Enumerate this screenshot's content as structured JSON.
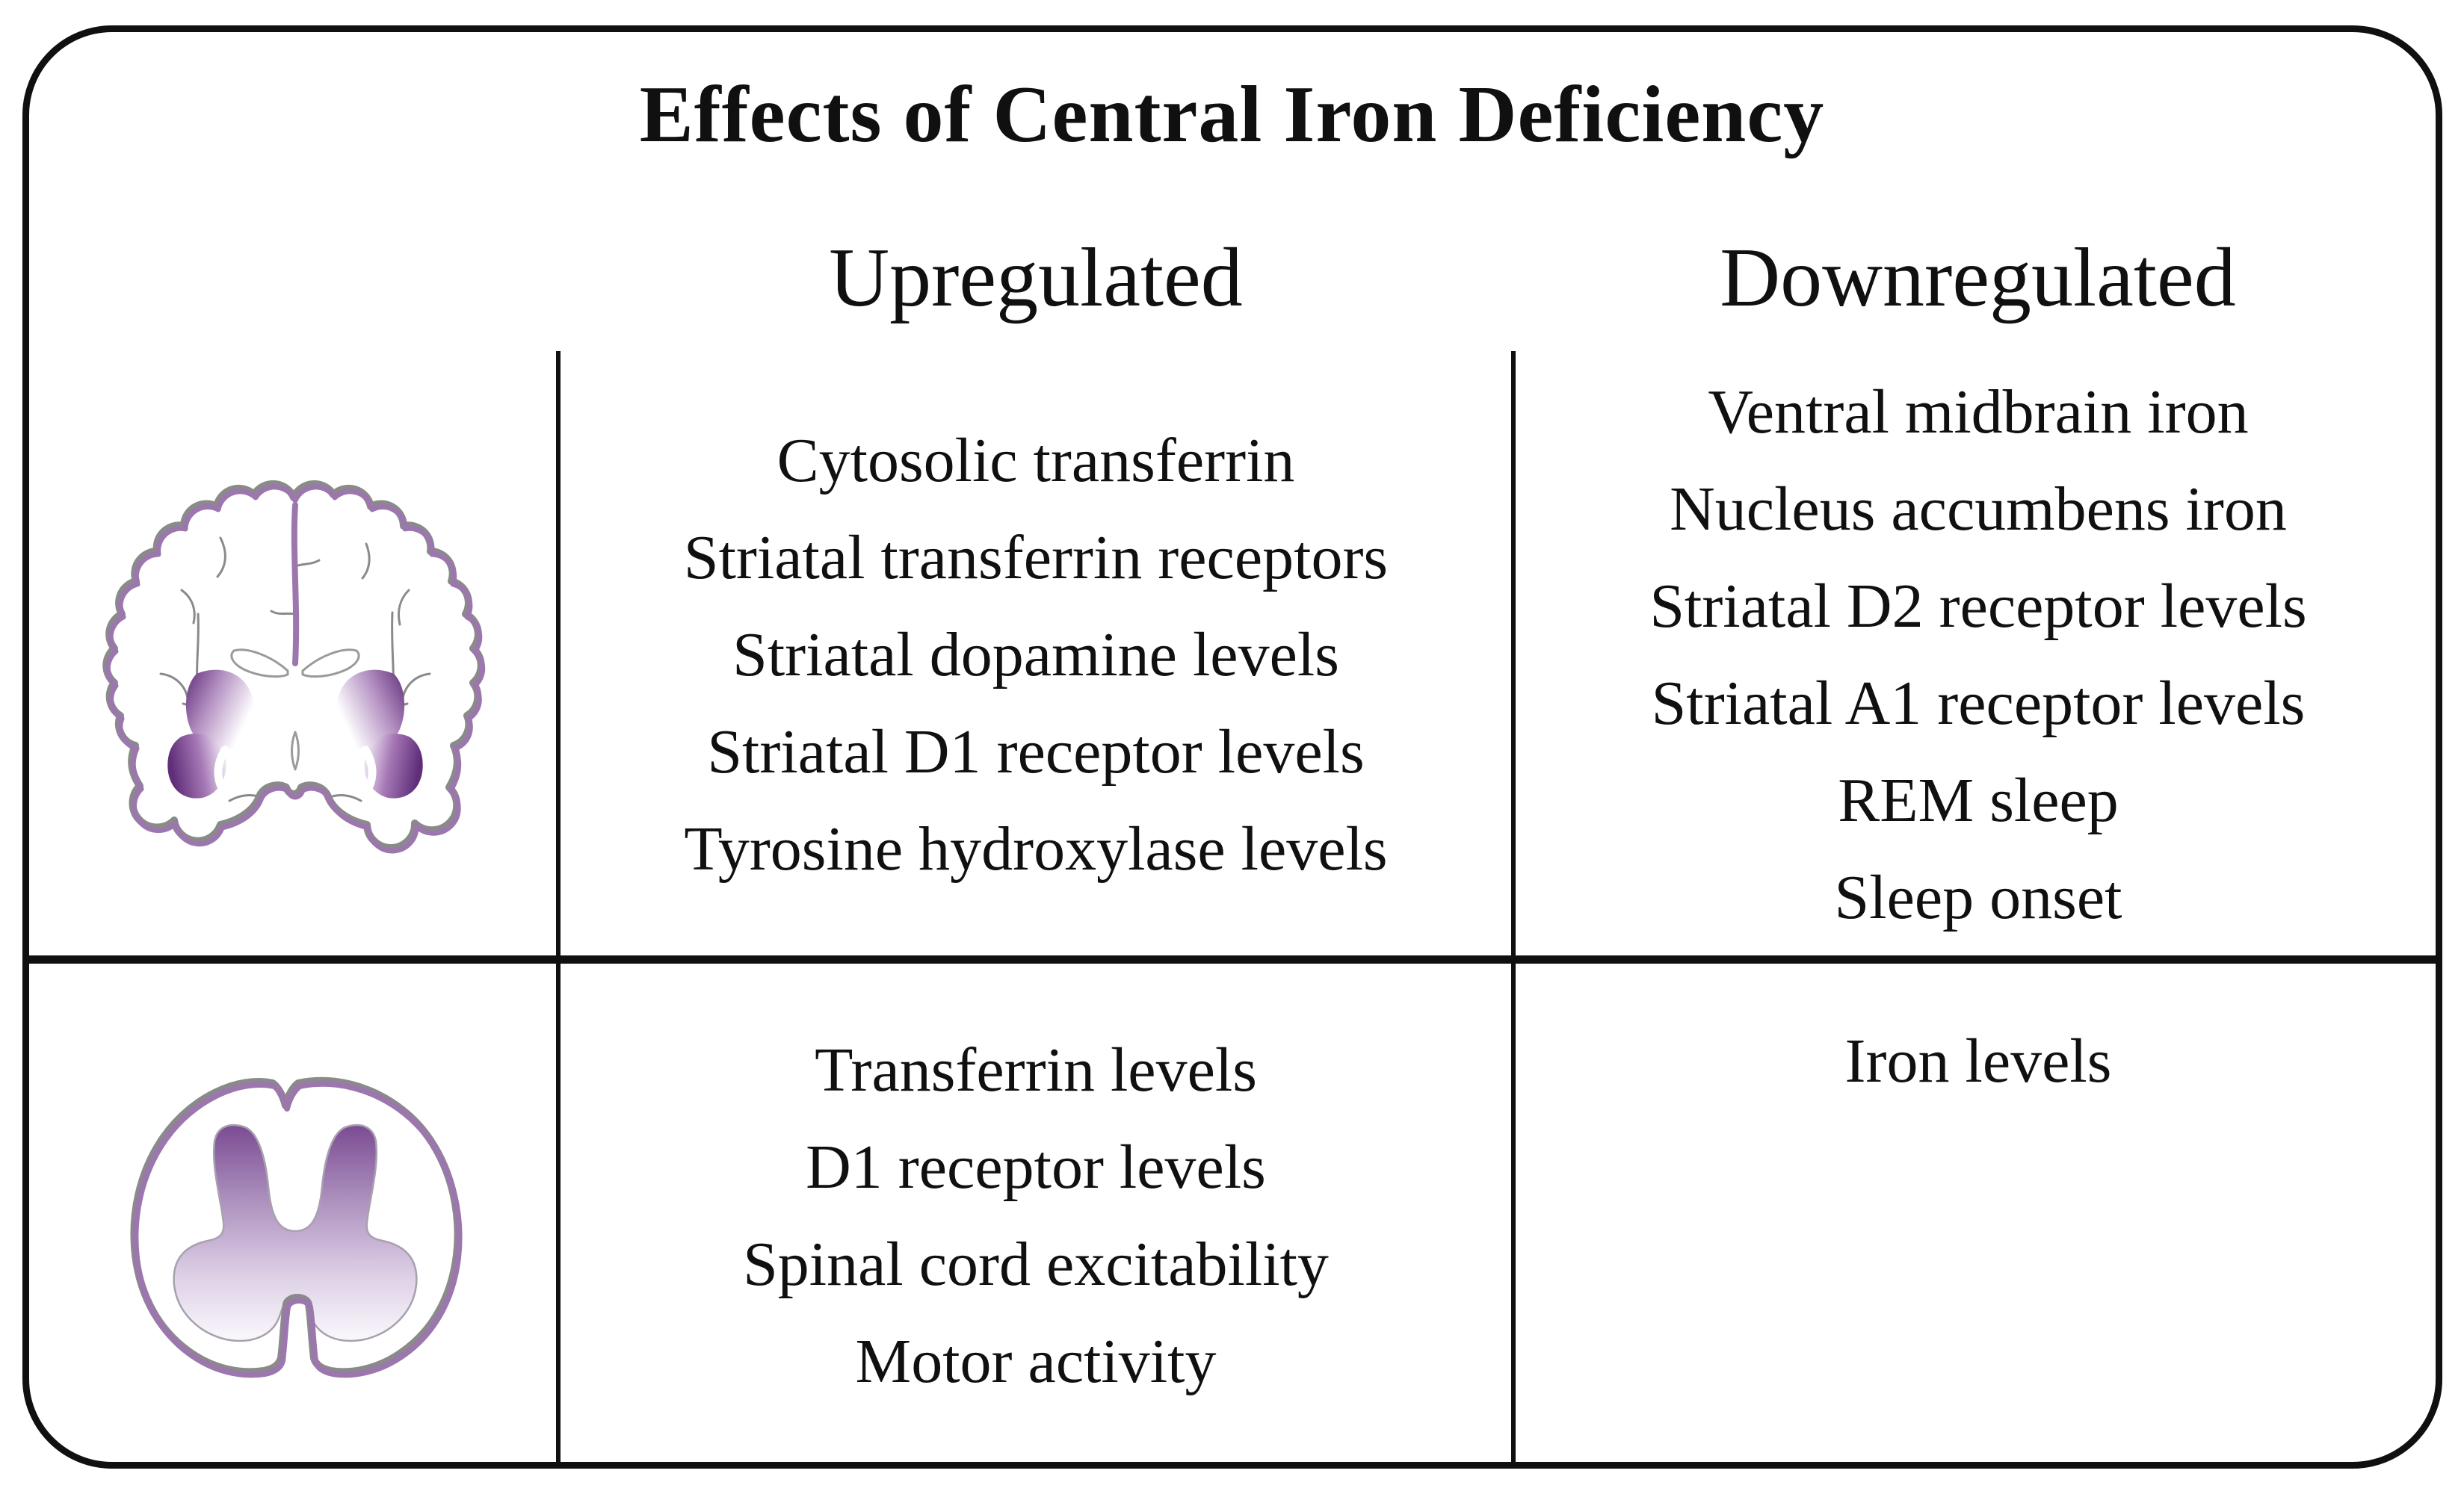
{
  "figure_title": "Effects of Central Iron Deficiency",
  "columns": {
    "upregulated": "Upregulated",
    "downregulated": "Downregulated"
  },
  "rows": [
    {
      "icon": "brain-coronal-section-icon",
      "upregulated": [
        "Cytosolic transferrin",
        "Striatal transferrin receptors",
        "Striatal dopamine levels",
        "Striatal D1 receptor levels",
        "Tyrosine hydroxylase levels"
      ],
      "downregulated": [
        "Ventral midbrain iron",
        "Nucleus accumbens iron",
        "Striatal D2 receptor levels",
        "Striatal A1 receptor levels",
        "REM sleep",
        "Sleep onset"
      ]
    },
    {
      "icon": "spinal-cord-cross-section-icon",
      "upregulated": [
        "Transferrin levels",
        "D1 receptor levels",
        "Spinal cord excitability",
        "Motor activity"
      ],
      "downregulated": [
        "Iron levels"
      ]
    }
  ],
  "colors": {
    "outline_purple": "#9c77ad",
    "deep_purple": "#602e79",
    "line_black": "#101010",
    "sketch_gray": "#8a8a8a"
  }
}
